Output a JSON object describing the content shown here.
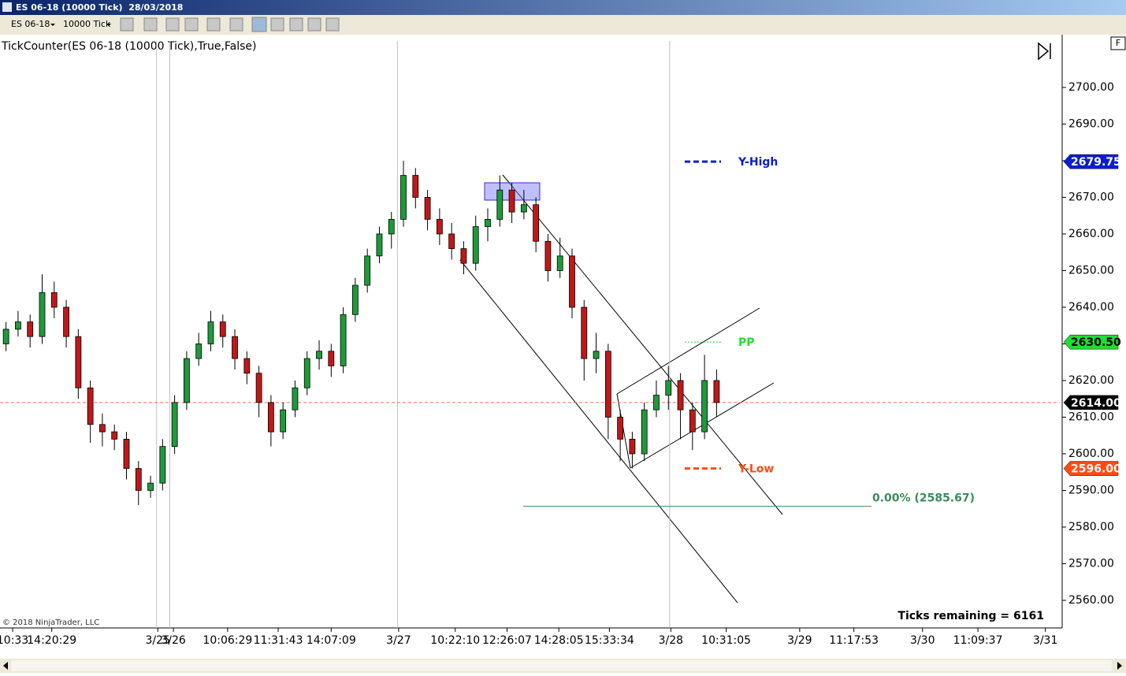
{
  "window": {
    "title": "ES 06-18 (10000 Tick)  28/03/2018",
    "instrument": "ES 06-18",
    "interval": "10000 Tick",
    "panel_button": "F"
  },
  "chart_data": {
    "type": "candlestick",
    "title": "TickCounter(ES 06-18 (10000 Tick),True,False)",
    "copyright": "© 2018 NinjaTrader, LLC",
    "annotation": "Ticks remaining = 6161",
    "up_color": "#1f9a3a",
    "down_color": "#c01818",
    "open": [
      2630,
      2634,
      2636,
      2632,
      2644,
      2640,
      2632,
      2618,
      2608,
      2606,
      2604,
      2596,
      2590,
      2592,
      2602,
      2614,
      2626,
      2630,
      2636,
      2632,
      2626,
      2622,
      2614,
      2606,
      2612,
      2618,
      2626,
      2628,
      2624,
      2638,
      2646,
      2654,
      2660,
      2664,
      2676,
      2670,
      2664,
      2660,
      2656,
      2652,
      2662,
      2664,
      2672,
      2666,
      2668,
      2658,
      2650,
      2654,
      2640,
      2626,
      2628,
      2610,
      2604,
      2600,
      2612,
      2616,
      2620,
      2612,
      2606,
      2620
    ],
    "high": [
      2636,
      2639,
      2638,
      2649,
      2647,
      2642,
      2634,
      2620,
      2611,
      2608,
      2606,
      2598,
      2594,
      2604,
      2616,
      2628,
      2633,
      2639,
      2638,
      2634,
      2628,
      2624,
      2616,
      2614,
      2620,
      2628,
      2631,
      2630,
      2640,
      2648,
      2656,
      2662,
      2666,
      2680,
      2678,
      2672,
      2667,
      2663,
      2658,
      2665,
      2667,
      2676,
      2674,
      2672,
      2670,
      2660,
      2659,
      2656,
      2642,
      2633,
      2630,
      2612,
      2606,
      2614,
      2620,
      2624,
      2622,
      2614,
      2627,
      2623
    ],
    "low": [
      2628,
      2632,
      2629,
      2630,
      2637,
      2629,
      2615,
      2603,
      2602,
      2601,
      2593,
      2586,
      2588,
      2590,
      2600,
      2612,
      2624,
      2628,
      2629,
      2623,
      2619,
      2610,
      2602,
      2604,
      2610,
      2616,
      2623,
      2621,
      2622,
      2636,
      2644,
      2652,
      2656,
      2662,
      2667,
      2661,
      2657,
      2653,
      2649,
      2650,
      2658,
      2662,
      2663,
      2664,
      2655,
      2647,
      2648,
      2637,
      2620,
      2622,
      2604,
      2598,
      2596,
      2598,
      2610,
      2612,
      2604,
      2601,
      2604,
      2610
    ],
    "close": [
      2634,
      2636,
      2632,
      2644,
      2640,
      2632,
      2618,
      2608,
      2606,
      2604,
      2596,
      2590,
      2592,
      2602,
      2614,
      2626,
      2630,
      2636,
      2632,
      2626,
      2622,
      2614,
      2606,
      2612,
      2618,
      2626,
      2628,
      2624,
      2638,
      2646,
      2654,
      2660,
      2664,
      2676,
      2670,
      2664,
      2660,
      2656,
      2652,
      2662,
      2664,
      2672,
      2666,
      2668,
      2658,
      2650,
      2654,
      2640,
      2626,
      2628,
      2610,
      2604,
      2600,
      2612,
      2616,
      2620,
      2612,
      2606,
      2620,
      2614
    ],
    "xlim": [
      -0.5,
      87.5
    ],
    "xticks": [
      {
        "value": 0.55,
        "label": "10:33"
      },
      {
        "value": 3.8,
        "label": "14:20:29"
      },
      {
        "value": 12.6,
        "label": "3/25"
      },
      {
        "value": 13.9,
        "label": "3/26"
      },
      {
        "value": 18.4,
        "label": "10:06:29"
      },
      {
        "value": 22.6,
        "label": "11:31:43"
      },
      {
        "value": 27,
        "label": "14:07:09"
      },
      {
        "value": 32.6,
        "label": "3/27"
      },
      {
        "value": 37.3,
        "label": "10:22:10"
      },
      {
        "value": 41.6,
        "label": "12:26:07"
      },
      {
        "value": 45.9,
        "label": "14:28:05"
      },
      {
        "value": 50.1,
        "label": "15:33:34"
      },
      {
        "value": 55.2,
        "label": "3/28"
      },
      {
        "value": 59.8,
        "label": "10:31:05"
      },
      {
        "value": 65.9,
        "label": "3/29"
      },
      {
        "value": 70.4,
        "label": "11:17:53"
      },
      {
        "value": 76.1,
        "label": "3/30"
      },
      {
        "value": 80.7,
        "label": "11:09:37"
      },
      {
        "value": 86.3,
        "label": "3/31"
      }
    ],
    "session_breaks": [
      12.5,
      13.6,
      32.5,
      55.1
    ],
    "ylim": [
      2552.9,
      2714.4
    ],
    "yticks": [
      {
        "value": 2560,
        "label": "2560.00"
      },
      {
        "value": 2570,
        "label": "2570.00"
      },
      {
        "value": 2580,
        "label": "2580.00"
      },
      {
        "value": 2590,
        "label": "2590.00"
      },
      {
        "value": 2600,
        "label": "2600.00"
      },
      {
        "value": 2610,
        "label": "2610.00"
      },
      {
        "value": 2620,
        "label": "2620.00"
      },
      {
        "value": 2630,
        "label": "2630.00"
      },
      {
        "value": 2640,
        "label": "2640.00"
      },
      {
        "value": 2650,
        "label": "2650.00"
      },
      {
        "value": 2660,
        "label": "2660.00"
      },
      {
        "value": 2670,
        "label": "2670.00"
      },
      {
        "value": 2680,
        "label": "2680.00"
      },
      {
        "value": 2690,
        "label": "2690.00"
      },
      {
        "value": 2700,
        "label": "2700.00"
      }
    ],
    "levels": [
      {
        "name": "Y-High",
        "value": 2679.75,
        "label": "2679.75",
        "color": "#0a1ed0",
        "dash": "7,4"
      },
      {
        "name": "PP",
        "value": 2630.5,
        "label": "2630.50",
        "color": "#22dd33",
        "dash": "2,2"
      },
      {
        "name": "Y-Low",
        "value": 2596,
        "label": "2596.00",
        "color": "#ff4a10",
        "dash": "7,4"
      }
    ],
    "last_price": {
      "value": 2614,
      "label": "2614.00",
      "color": "#ff6a3d"
    },
    "fib": {
      "value": 2585.67,
      "label": "0.00% (2585.67)",
      "color": "#3a8a5a"
    }
  }
}
